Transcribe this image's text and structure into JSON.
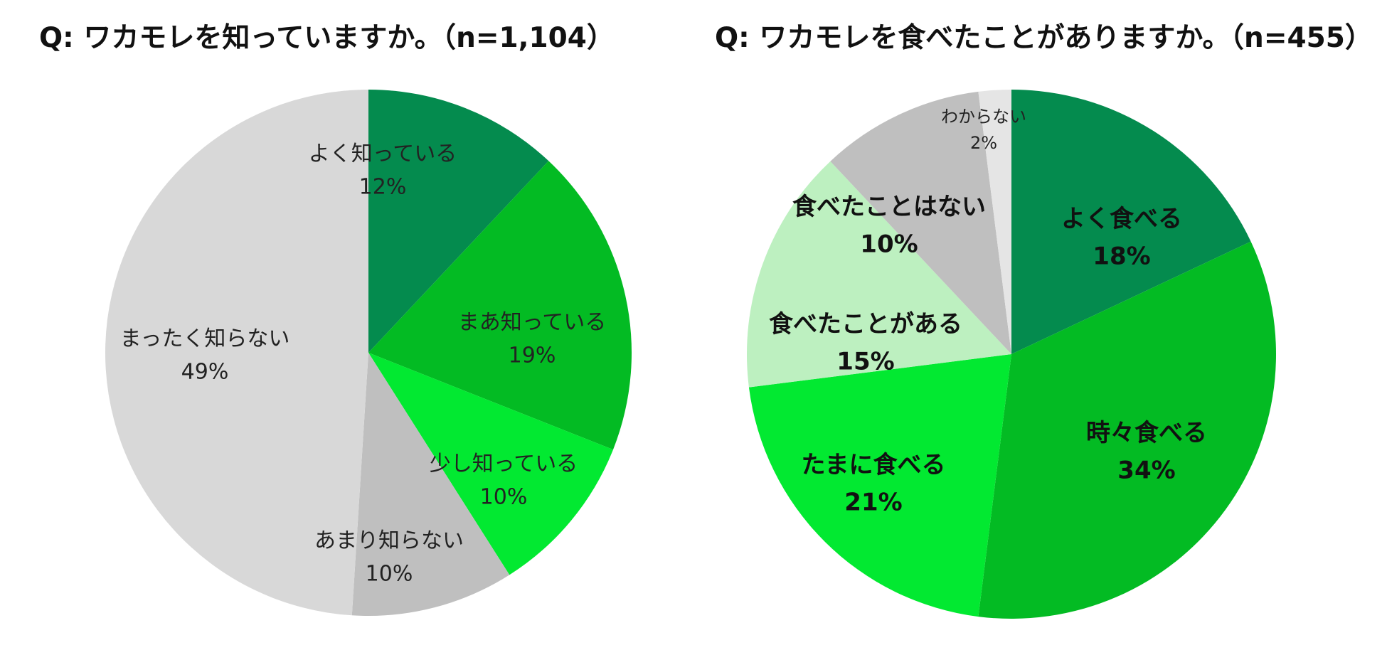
{
  "chart_data": [
    {
      "type": "pie",
      "title": "Q:  ワカモレを知っていますか。（n=1,104）",
      "slices": [
        {
          "label": "よく知っている",
          "value": 12,
          "value_label": "12%",
          "color": "#048b4e"
        },
        {
          "label": "まあ知っている",
          "value": 19,
          "value_label": "19%",
          "color": "#03bb23"
        },
        {
          "label": "少し知っている",
          "value": 10,
          "value_label": "10%",
          "color": "#02e931"
        },
        {
          "label": "あまり知らない",
          "value": 10,
          "value_label": "10%",
          "color": "#bfbfbf"
        },
        {
          "label": "まったく知らない",
          "value": 49,
          "value_label": "49%",
          "color": "#d8d8d8"
        }
      ]
    },
    {
      "type": "pie",
      "title": "Q:  ワカモレを食べたことがありますか。（n=455）",
      "slices": [
        {
          "label": "よく食べる",
          "value": 18,
          "value_label": "18%",
          "color": "#048b4e"
        },
        {
          "label": "時々食べる",
          "value": 34,
          "value_label": "34%",
          "color": "#03bb23"
        },
        {
          "label": "たまに食べる",
          "value": 21,
          "value_label": "21%",
          "color": "#02e931"
        },
        {
          "label": "食べたことがある",
          "value": 15,
          "value_label": "15%",
          "color": "#bdf0c0"
        },
        {
          "label": "食べたことはない",
          "value": 10,
          "value_label": "10%",
          "color": "#bfbfbf"
        },
        {
          "label": "わからない",
          "value": 2,
          "value_label": "2%",
          "color": "#e5e5e5"
        }
      ]
    }
  ]
}
